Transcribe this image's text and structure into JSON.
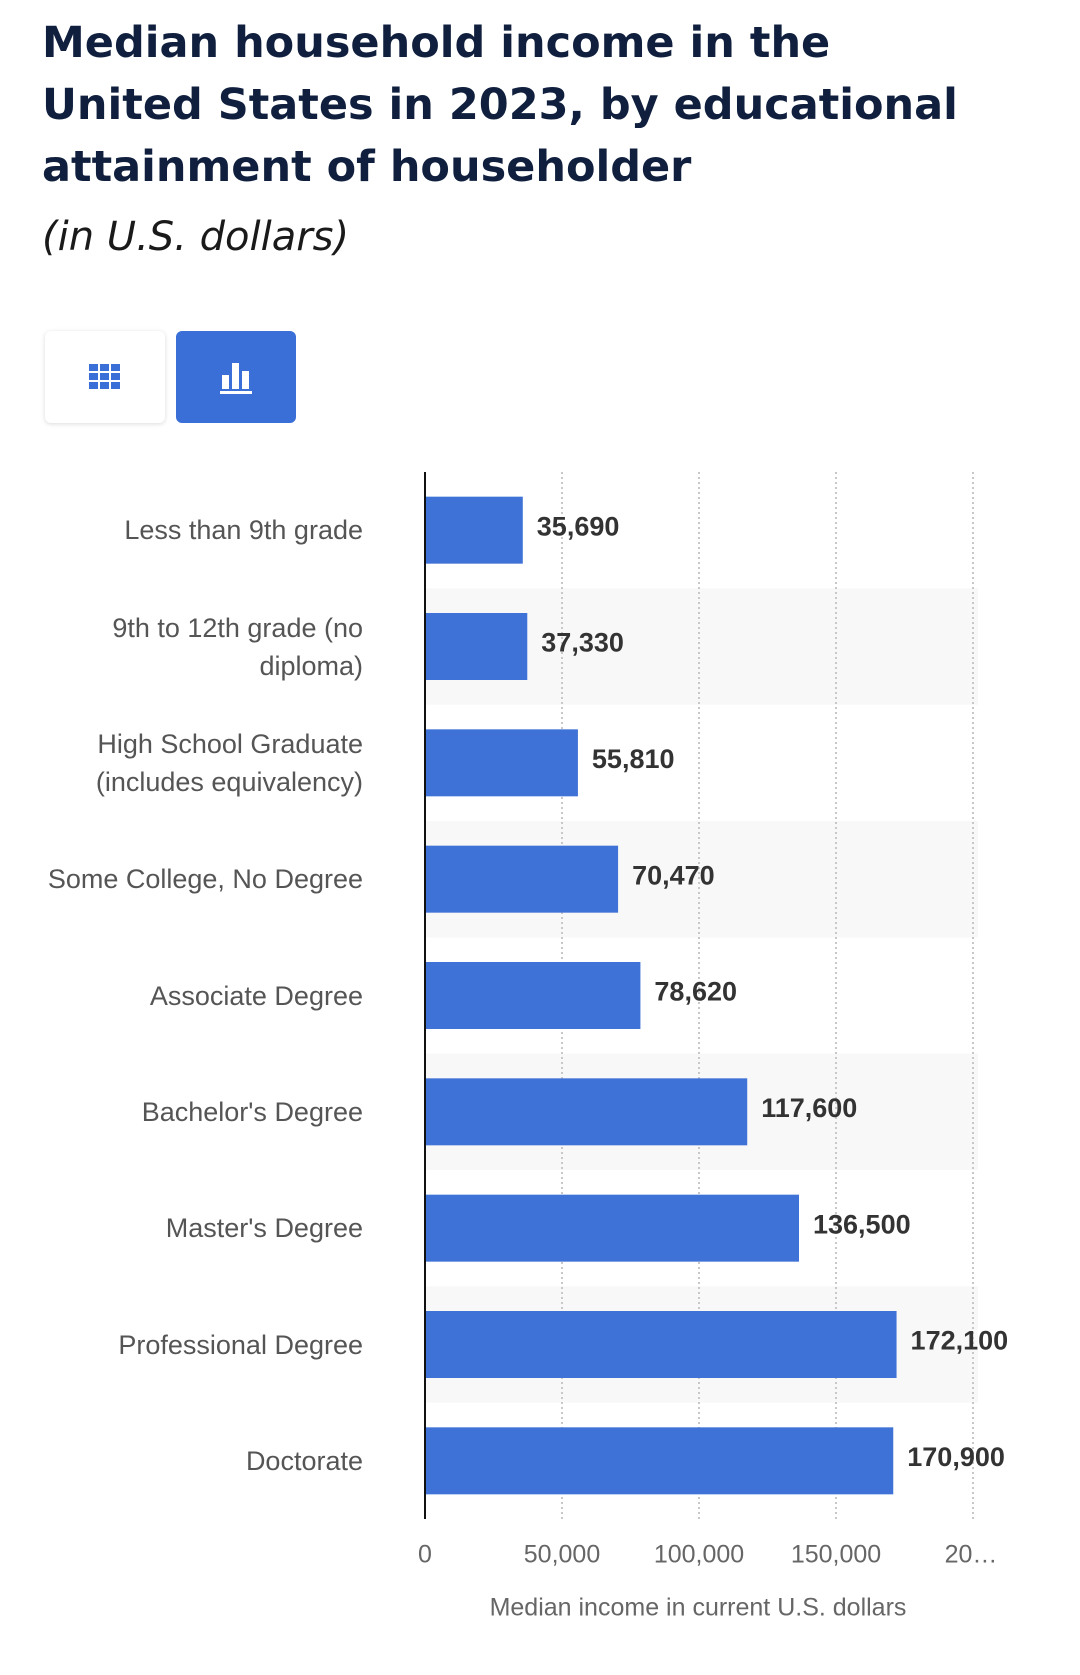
{
  "chart_data": {
    "type": "bar",
    "orientation": "horizontal",
    "title": "Median household income in the United States in 2023, by educational attainment of householder",
    "subtitle": "(in U.S. dollars)",
    "x_label": "Median income in current U.S. dollars",
    "categories": [
      "Less than 9th grade",
      "9th to 12th grade (no diploma)",
      "High School Graduate (includes equivalency)",
      "Some College, No Degree",
      "Associate Degree",
      "Bachelor's Degree",
      "Master's Degree",
      "Professional Degree",
      "Doctorate"
    ],
    "values": [
      35690,
      37330,
      55810,
      70470,
      78620,
      117600,
      136500,
      172100,
      170900
    ],
    "value_labels": [
      "35,690",
      "37,330",
      "55,810",
      "70,470",
      "78,620",
      "117,600",
      "136,500",
      "172,100",
      "170,900"
    ],
    "color": "#3f72d6",
    "xlim": [
      0,
      200000
    ],
    "xticks": [
      0,
      {
        "value": 50000,
        "label": "50,000"
      },
      {
        "value": 100000,
        "label": "100,000"
      },
      {
        "value": 150000,
        "label": "150,000"
      },
      {
        "value": 200000,
        "label": "20…"
      }
    ],
    "grid": true
  }
}
